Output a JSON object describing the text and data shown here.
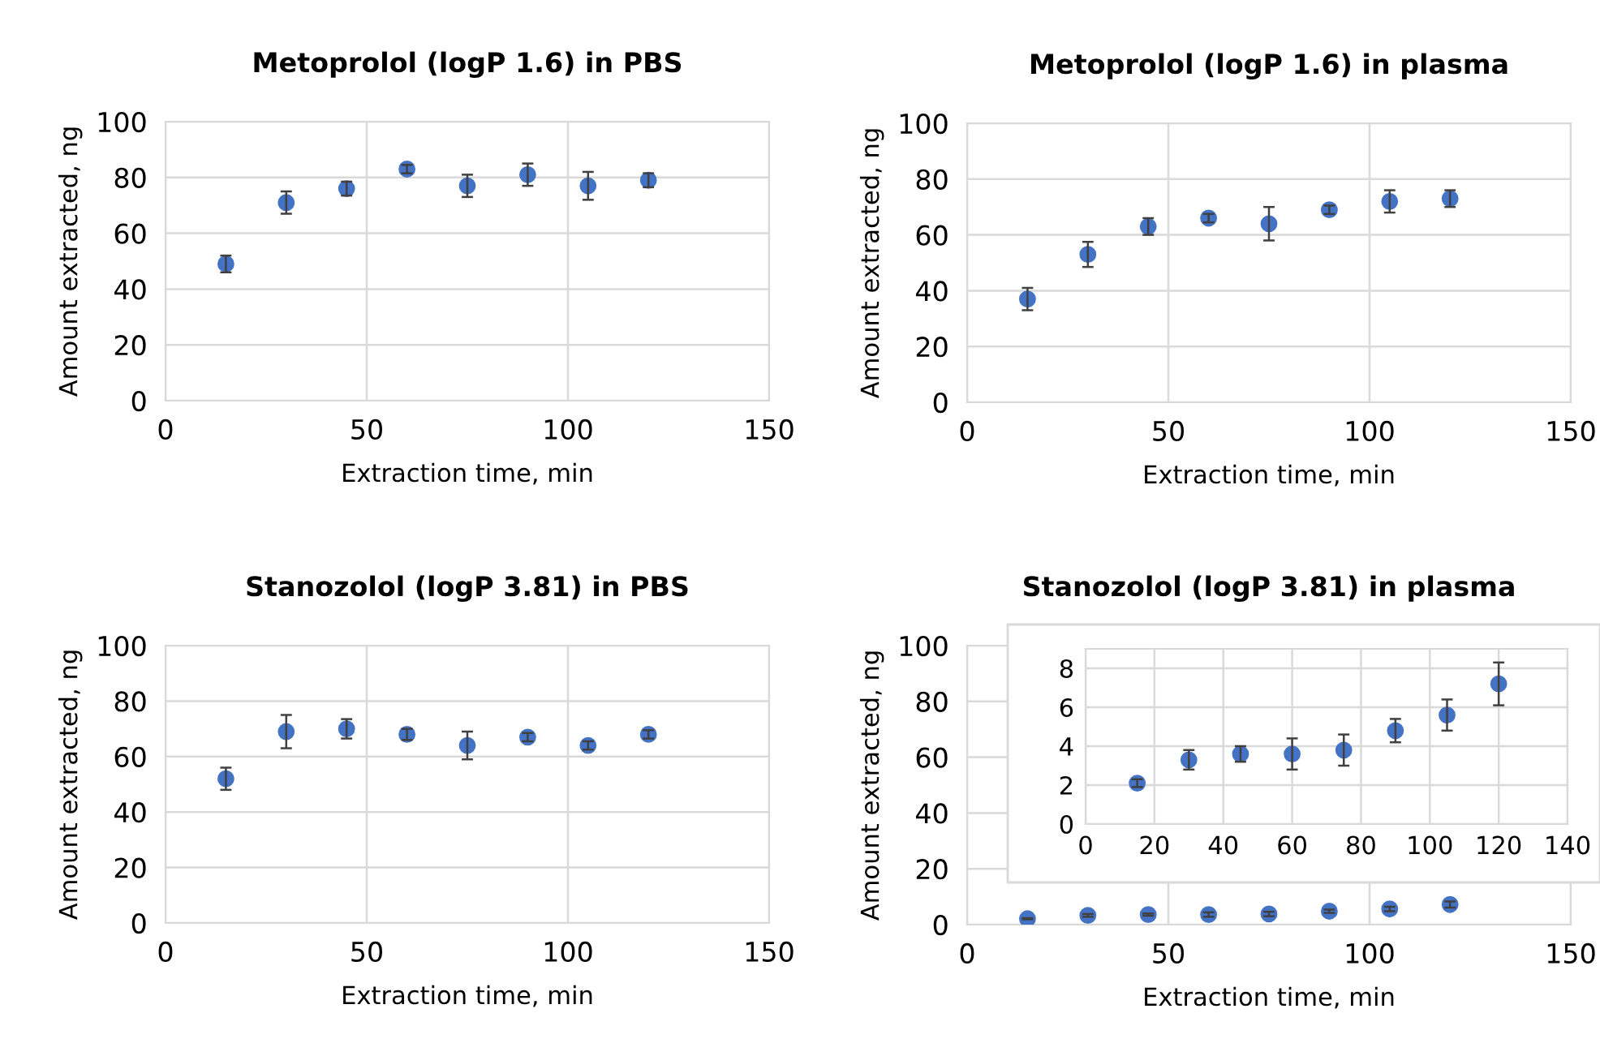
{
  "chart_data": [
    {
      "type": "scatter",
      "title": "Metoprolol (logP 1.6) in PBS",
      "xlabel": "Extraction time, min",
      "ylabel": "Amount extracted, ng",
      "xlim": [
        0,
        150
      ],
      "xticks": [
        0,
        50,
        100,
        150
      ],
      "ylim": [
        0,
        100
      ],
      "yticks": [
        0,
        20,
        40,
        60,
        80,
        100
      ],
      "grid": true,
      "marker": "circle",
      "series": [
        {
          "color": "#4472c4",
          "x": [
            15,
            30,
            45,
            60,
            75,
            90,
            105,
            120
          ],
          "values": [
            49,
            71,
            76,
            83,
            77,
            81,
            77,
            79
          ],
          "errors": [
            3,
            4,
            2.5,
            1.5,
            4,
            4,
            5,
            2.5
          ]
        }
      ]
    },
    {
      "type": "scatter",
      "title": "Metoprolol (logP 1.6) in plasma",
      "xlabel": "Extraction time, min",
      "ylabel": "Amount extracted, ng",
      "xlim": [
        0,
        150
      ],
      "xticks": [
        0,
        50,
        100,
        150
      ],
      "ylim": [
        0,
        100
      ],
      "yticks": [
        0,
        20,
        40,
        60,
        80,
        100
      ],
      "grid": true,
      "marker": "circle",
      "series": [
        {
          "color": "#4472c4",
          "x": [
            15,
            30,
            45,
            60,
            75,
            90,
            105,
            120
          ],
          "values": [
            37,
            53,
            63,
            66,
            64,
            69,
            72,
            73
          ],
          "errors": [
            4,
            4.5,
            3,
            1.5,
            6,
            1.5,
            4,
            3
          ]
        }
      ]
    },
    {
      "type": "scatter",
      "title": "Stanozolol (logP 3.81) in PBS",
      "xlabel": "Extraction time, min",
      "ylabel": "Amount extracted, ng",
      "xlim": [
        0,
        150
      ],
      "xticks": [
        0,
        50,
        100,
        150
      ],
      "ylim": [
        0,
        100
      ],
      "yticks": [
        0,
        20,
        40,
        60,
        80,
        100
      ],
      "grid": true,
      "marker": "circle",
      "series": [
        {
          "color": "#4472c4",
          "x": [
            15,
            30,
            45,
            60,
            75,
            90,
            105,
            120
          ],
          "values": [
            52,
            69,
            70,
            68,
            64,
            67,
            64,
            68
          ],
          "errors": [
            4,
            6,
            3.5,
            2,
            5,
            1.5,
            1.5,
            1.5
          ]
        }
      ]
    },
    {
      "type": "scatter",
      "title": "Stanozolol (logP 3.81) in plasma",
      "xlabel": "Extraction time, min",
      "ylabel": "Amount extracted, ng",
      "xlim": [
        0,
        150
      ],
      "xticks": [
        0,
        50,
        100,
        150
      ],
      "ylim": [
        0,
        100
      ],
      "yticks": [
        0,
        20,
        40,
        60,
        80,
        100
      ],
      "grid": true,
      "marker": "circle",
      "series": [
        {
          "color": "#4472c4",
          "x": [
            15,
            30,
            45,
            60,
            75,
            90,
            105,
            120
          ],
          "values": [
            2.1,
            3.3,
            3.6,
            3.6,
            3.8,
            4.8,
            5.6,
            7.2
          ],
          "errors": [
            0.2,
            0.5,
            0.4,
            0.8,
            0.8,
            0.6,
            0.8,
            1.1
          ]
        }
      ]
    },
    {
      "type": "scatter",
      "xlim": [
        0,
        140
      ],
      "xticks": [
        0,
        20,
        40,
        60,
        80,
        100,
        120,
        140
      ],
      "ylim": [
        0,
        9
      ],
      "yticks": [
        0,
        2,
        4,
        6,
        8
      ],
      "grid": true,
      "marker": "circle",
      "series": [
        {
          "color": "#4472c4",
          "x": [
            15,
            30,
            45,
            60,
            75,
            90,
            105,
            120
          ],
          "values": [
            2.1,
            3.3,
            3.6,
            3.6,
            3.8,
            4.8,
            5.6,
            7.2
          ],
          "errors": [
            0.2,
            0.5,
            0.4,
            0.8,
            0.8,
            0.6,
            0.8,
            1.1
          ]
        }
      ]
    }
  ]
}
